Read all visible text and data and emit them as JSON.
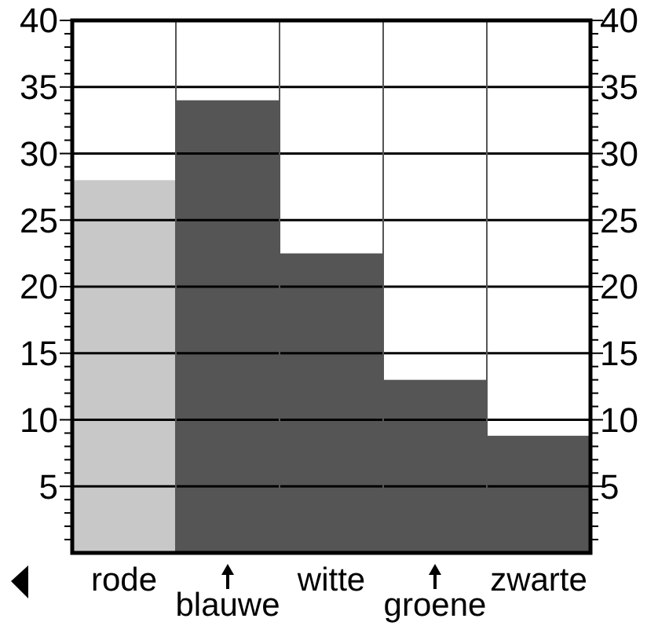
{
  "chart_data": {
    "type": "bar",
    "categories": [
      "rode",
      "blauwe",
      "witte",
      "groene",
      "zwarte"
    ],
    "values": [
      28,
      34,
      22.5,
      13,
      8.8
    ],
    "colors": [
      "#c8c8c8",
      "#555555",
      "#555555",
      "#555555",
      "#555555"
    ],
    "ylim": [
      0,
      40
    ],
    "yticks": [
      {
        "value": 1,
        "label": null
      },
      {
        "value": 2,
        "label": null
      },
      {
        "value": 3,
        "label": null
      },
      {
        "value": 4,
        "label": null
      },
      5,
      {
        "value": 6,
        "label": null
      },
      {
        "value": 7,
        "label": null
      },
      {
        "value": 8,
        "label": null
      },
      {
        "value": 9,
        "label": null
      },
      10,
      {
        "value": 11,
        "label": null
      },
      {
        "value": 12,
        "label": null
      },
      {
        "value": 13,
        "label": null
      },
      {
        "value": 14,
        "label": null
      },
      15,
      {
        "value": 16,
        "label": null
      },
      {
        "value": 17,
        "label": null
      },
      {
        "value": 18,
        "label": null
      },
      {
        "value": 19,
        "label": null
      },
      20,
      {
        "value": 21,
        "label": null
      },
      {
        "value": 22,
        "label": null
      },
      {
        "value": 23,
        "label": null
      },
      {
        "value": 24,
        "label": null
      },
      25,
      {
        "value": 26,
        "label": null
      },
      {
        "value": 27,
        "label": null
      },
      {
        "value": 28,
        "label": null
      },
      {
        "value": 29,
        "label": null
      },
      30,
      {
        "value": 31,
        "label": null
      },
      {
        "value": 32,
        "label": null
      },
      {
        "value": 33,
        "label": null
      },
      {
        "value": 34,
        "label": null
      },
      35,
      {
        "value": 36,
        "label": null
      },
      {
        "value": 37,
        "label": null
      },
      {
        "value": 38,
        "label": null
      },
      {
        "value": 39,
        "label": null
      },
      40
    ],
    "y2lim": [
      0,
      40
    ],
    "y2ticks": [
      {
        "value": 1,
        "label": null
      },
      {
        "value": 2,
        "label": null
      },
      {
        "value": 3,
        "label": null
      },
      {
        "value": 4,
        "label": null
      },
      5,
      {
        "value": 6,
        "label": null
      },
      {
        "value": 7,
        "label": null
      },
      {
        "value": 8,
        "label": null
      },
      {
        "value": 9,
        "label": null
      },
      10,
      {
        "value": 11,
        "label": null
      },
      {
        "value": 12,
        "label": null
      },
      {
        "value": 13,
        "label": null
      },
      {
        "value": 14,
        "label": null
      },
      15,
      {
        "value": 16,
        "label": null
      },
      {
        "value": 17,
        "label": null
      },
      {
        "value": 18,
        "label": null
      },
      {
        "value": 19,
        "label": null
      },
      20,
      {
        "value": 21,
        "label": null
      },
      {
        "value": 22,
        "label": null
      },
      {
        "value": 23,
        "label": null
      },
      {
        "value": 24,
        "label": null
      },
      25,
      {
        "value": 26,
        "label": null
      },
      {
        "value": 27,
        "label": null
      },
      {
        "value": 28,
        "label": null
      },
      {
        "value": 29,
        "label": null
      },
      30,
      {
        "value": 31,
        "label": null
      },
      {
        "value": 32,
        "label": null
      },
      {
        "value": 33,
        "label": null
      },
      {
        "value": 34,
        "label": null
      },
      35,
      {
        "value": 36,
        "label": null
      },
      {
        "value": 37,
        "label": null
      },
      {
        "value": 38,
        "label": null
      },
      {
        "value": 39,
        "label": null
      },
      40
    ],
    "grid": true
  }
}
